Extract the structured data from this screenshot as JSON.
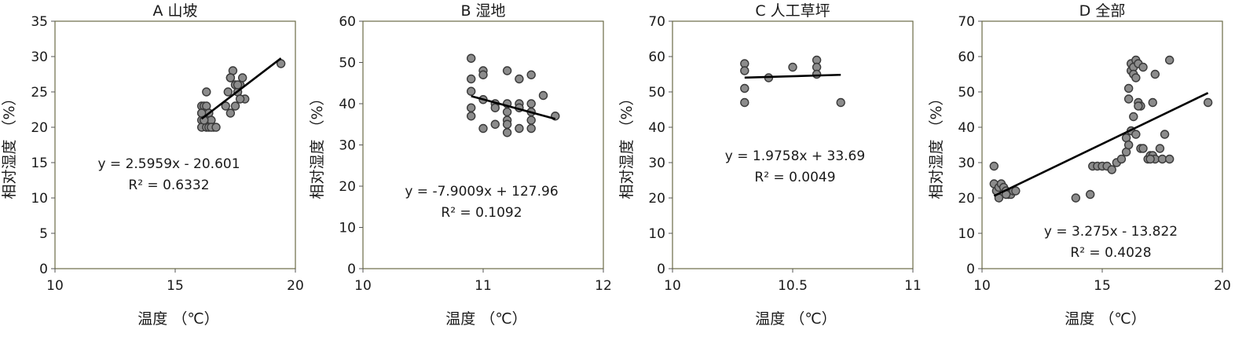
{
  "figure": {
    "background": "#ffffff",
    "marker_fill": "#8c8c8c",
    "marker_stroke": "#3a3a3a",
    "line_color": "#000000"
  },
  "chart_data": [
    {
      "type": "scatter",
      "title": "A 山坡",
      "xlabel": "温度 （℃）",
      "ylabel": "相对湿度 （%）",
      "xlim": [
        10,
        20
      ],
      "ylim": [
        0,
        35
      ],
      "xticks": [
        "10",
        "15",
        "20"
      ],
      "yticks": [
        "0",
        "5",
        "10",
        "15",
        "20",
        "25",
        "30",
        "35"
      ],
      "equation": "y = 2.5959x - 20.601",
      "r2": "R² = 0.6332",
      "trendline": {
        "x": [
          16.1,
          19.4
        ]
      },
      "x": [
        16.1,
        16.2,
        16.3,
        16.1,
        16.2,
        16.4,
        16.1,
        16.3,
        16.5,
        16.2,
        16.1,
        16.3,
        16.4,
        16.6,
        16.1,
        16.2,
        16.3,
        16.5,
        16.7,
        17.1,
        17.2,
        17.3,
        17.4,
        17.3,
        17.5,
        17.6,
        17.7,
        17.8,
        17.9,
        17.6,
        17.7,
        17.5,
        17.3,
        19.4
      ],
      "y": [
        23,
        23,
        23,
        22,
        22,
        22,
        21,
        21,
        21,
        21,
        20,
        20,
        20,
        20,
        22,
        21,
        25,
        20,
        20,
        23,
        25,
        22,
        28,
        27,
        26,
        25,
        26,
        27,
        24,
        26,
        24,
        23,
        27,
        29
      ]
    },
    {
      "type": "scatter",
      "title": "B 湿地",
      "xlabel": "温度 （℃）",
      "ylabel": "相对湿度 （%）",
      "xlim": [
        10,
        12
      ],
      "ylim": [
        0,
        60
      ],
      "xticks": [
        "10",
        "11",
        "12"
      ],
      "yticks": [
        "0",
        "10",
        "20",
        "30",
        "40",
        "50",
        "60"
      ],
      "equation": "y = -7.9009x + 127.96",
      "r2": "R² = 0.1092",
      "trendline": {
        "x": [
          10.9,
          11.6
        ]
      },
      "x": [
        10.9,
        10.9,
        10.9,
        10.9,
        10.9,
        11.0,
        11.0,
        11.0,
        11.0,
        11.1,
        11.1,
        11.1,
        11.2,
        11.2,
        11.2,
        11.2,
        11.2,
        11.2,
        11.3,
        11.3,
        11.3,
        11.3,
        11.4,
        11.4,
        11.4,
        11.4,
        11.4,
        11.5,
        11.6
      ],
      "y": [
        51,
        46,
        43,
        39,
        37,
        48,
        47,
        41,
        34,
        40,
        39,
        35,
        48,
        40,
        38,
        36,
        35,
        33,
        46,
        40,
        39,
        34,
        47,
        40,
        38,
        36,
        34,
        42,
        37
      ]
    },
    {
      "type": "scatter",
      "title": "C 人工草坪",
      "xlabel": "温度 （℃）",
      "ylabel": "相对湿度 （%）",
      "xlim": [
        10,
        11
      ],
      "ylim": [
        0,
        70
      ],
      "xticks": [
        "10",
        "10.5",
        "11"
      ],
      "yticks": [
        "0",
        "10",
        "20",
        "30",
        "40",
        "50",
        "60",
        "70"
      ],
      "equation": "y = 1.9758x + 33.69",
      "r2": "R² = 0.0049",
      "trendline": {
        "x": [
          10.3,
          10.7
        ]
      },
      "x": [
        10.3,
        10.3,
        10.3,
        10.3,
        10.4,
        10.5,
        10.6,
        10.6,
        10.6,
        10.7
      ],
      "y": [
        58,
        56,
        51,
        47,
        54,
        57,
        59,
        57,
        55,
        47
      ]
    },
    {
      "type": "scatter",
      "title": "D 全部",
      "xlabel": "温度 （℃）",
      "ylabel": "相对湿度 （%）",
      "xlim": [
        10,
        20
      ],
      "ylim": [
        0,
        70
      ],
      "xticks": [
        "10",
        "15",
        "20"
      ],
      "yticks": [
        "0",
        "10",
        "20",
        "30",
        "40",
        "50",
        "60",
        "70"
      ],
      "equation": "y = 3.275x - 13.822",
      "r2": "R² = 0.4028",
      "trendline": {
        "x": [
          10.5,
          19.4
        ]
      },
      "x": [
        10.5,
        10.5,
        10.6,
        10.7,
        10.8,
        10.9,
        11.0,
        11.1,
        11.2,
        11.3,
        11.4,
        10.7,
        11.0,
        13.9,
        14.5,
        14.6,
        14.8,
        15.0,
        15.2,
        15.4,
        15.6,
        15.8,
        16.0,
        16.1,
        16.1,
        16.2,
        16.2,
        16.3,
        16.3,
        16.4,
        16.4,
        16.5,
        16.5,
        16.6,
        16.7,
        16.9,
        17.0,
        17.1,
        17.2,
        16.0,
        16.1,
        16.2,
        16.3,
        16.4,
        16.5,
        16.6,
        16.7,
        17.1,
        17.2,
        17.0,
        17.4,
        17.5,
        17.6,
        17.8,
        17.8,
        19.4
      ],
      "y": [
        29,
        24,
        22,
        23,
        24,
        23,
        22,
        21,
        21,
        22,
        22,
        20,
        21,
        20,
        21,
        29,
        29,
        29,
        29,
        28,
        30,
        31,
        33,
        48,
        51,
        56,
        58,
        57,
        55,
        54,
        59,
        58,
        47,
        46,
        57,
        31,
        32,
        47,
        55,
        37,
        35,
        39,
        43,
        38,
        46,
        34,
        34,
        32,
        31,
        31,
        34,
        31,
        38,
        31,
        59,
        47
      ]
    }
  ]
}
